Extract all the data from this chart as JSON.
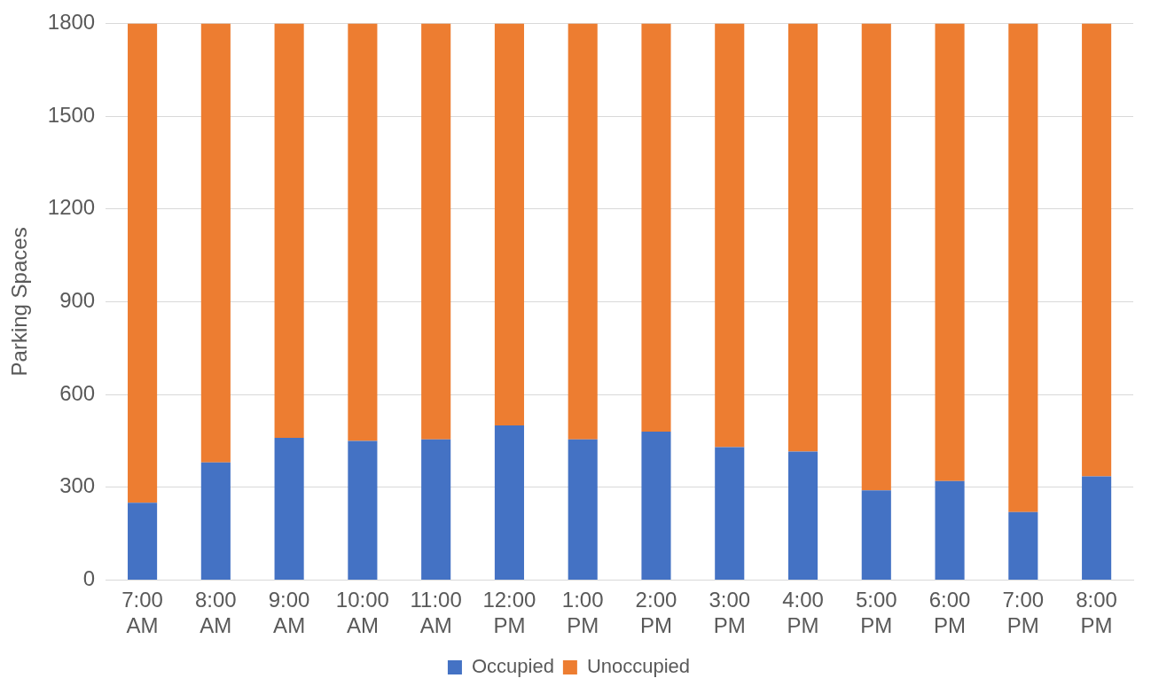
{
  "chart_data": {
    "type": "bar",
    "stacked": true,
    "ylabel": "Parking Spaces",
    "categories": [
      "7:00 AM",
      "8:00 AM",
      "9:00 AM",
      "10:00 AM",
      "11:00 AM",
      "12:00 PM",
      "1:00 PM",
      "2:00 PM",
      "3:00 PM",
      "4:00 PM",
      "5:00 PM",
      "6:00 PM",
      "7:00 PM",
      "8:00 PM"
    ],
    "series": [
      {
        "name": "Occupied",
        "color": "#4472c4",
        "values": [
          250,
          380,
          460,
          450,
          455,
          500,
          455,
          480,
          430,
          415,
          290,
          320,
          220,
          335
        ]
      },
      {
        "name": "Unoccupied",
        "color": "#ed7d31",
        "values": [
          1550,
          1420,
          1340,
          1350,
          1345,
          1300,
          1345,
          1320,
          1370,
          1385,
          1510,
          1480,
          1580,
          1465
        ]
      }
    ],
    "ylim": [
      0,
      1800
    ],
    "yticks": [
      0,
      300,
      600,
      900,
      1200,
      1500,
      1800
    ],
    "grid": "y",
    "legend": "bottom"
  }
}
